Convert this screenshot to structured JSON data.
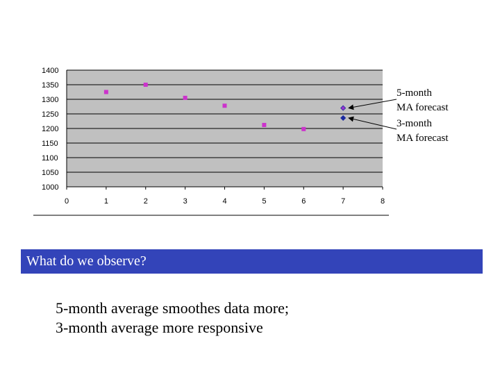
{
  "chart_data": {
    "type": "scatter",
    "title": "",
    "xlabel": "",
    "ylabel": "",
    "xlim": [
      0,
      8
    ],
    "ylim": [
      1000,
      1400
    ],
    "x_ticks": [
      0,
      1,
      2,
      3,
      4,
      5,
      6,
      7,
      8
    ],
    "y_ticks": [
      1000,
      1050,
      1100,
      1150,
      1200,
      1250,
      1300,
      1350,
      1400
    ],
    "grid": "horizontal",
    "series": [
      {
        "name": "",
        "color": "#cc33cc",
        "marker": "square",
        "points": [
          [
            1,
            1325
          ],
          [
            2,
            1350
          ],
          [
            3,
            1305
          ],
          [
            4,
            1278
          ],
          [
            5,
            1212
          ],
          [
            6,
            1198
          ]
        ]
      },
      {
        "name": "",
        "color": "#9933cc",
        "marker": "diamond",
        "points": [
          [
            7,
            1270
          ]
        ]
      },
      {
        "name": "",
        "color": "#1a2aa0",
        "marker": "diamond",
        "points": [
          [
            7,
            1236
          ]
        ]
      }
    ],
    "annotations": [
      {
        "lines": [
          "5-month",
          "MA forecast"
        ],
        "target": [
          7,
          1270
        ]
      },
      {
        "lines": [
          "3-month",
          "MA forecast"
        ],
        "target": [
          7,
          1236
        ]
      }
    ]
  },
  "question": "What do we observe?",
  "answer_lines": [
    "5-month average smoothes data more;",
    "3-month average more responsive"
  ]
}
